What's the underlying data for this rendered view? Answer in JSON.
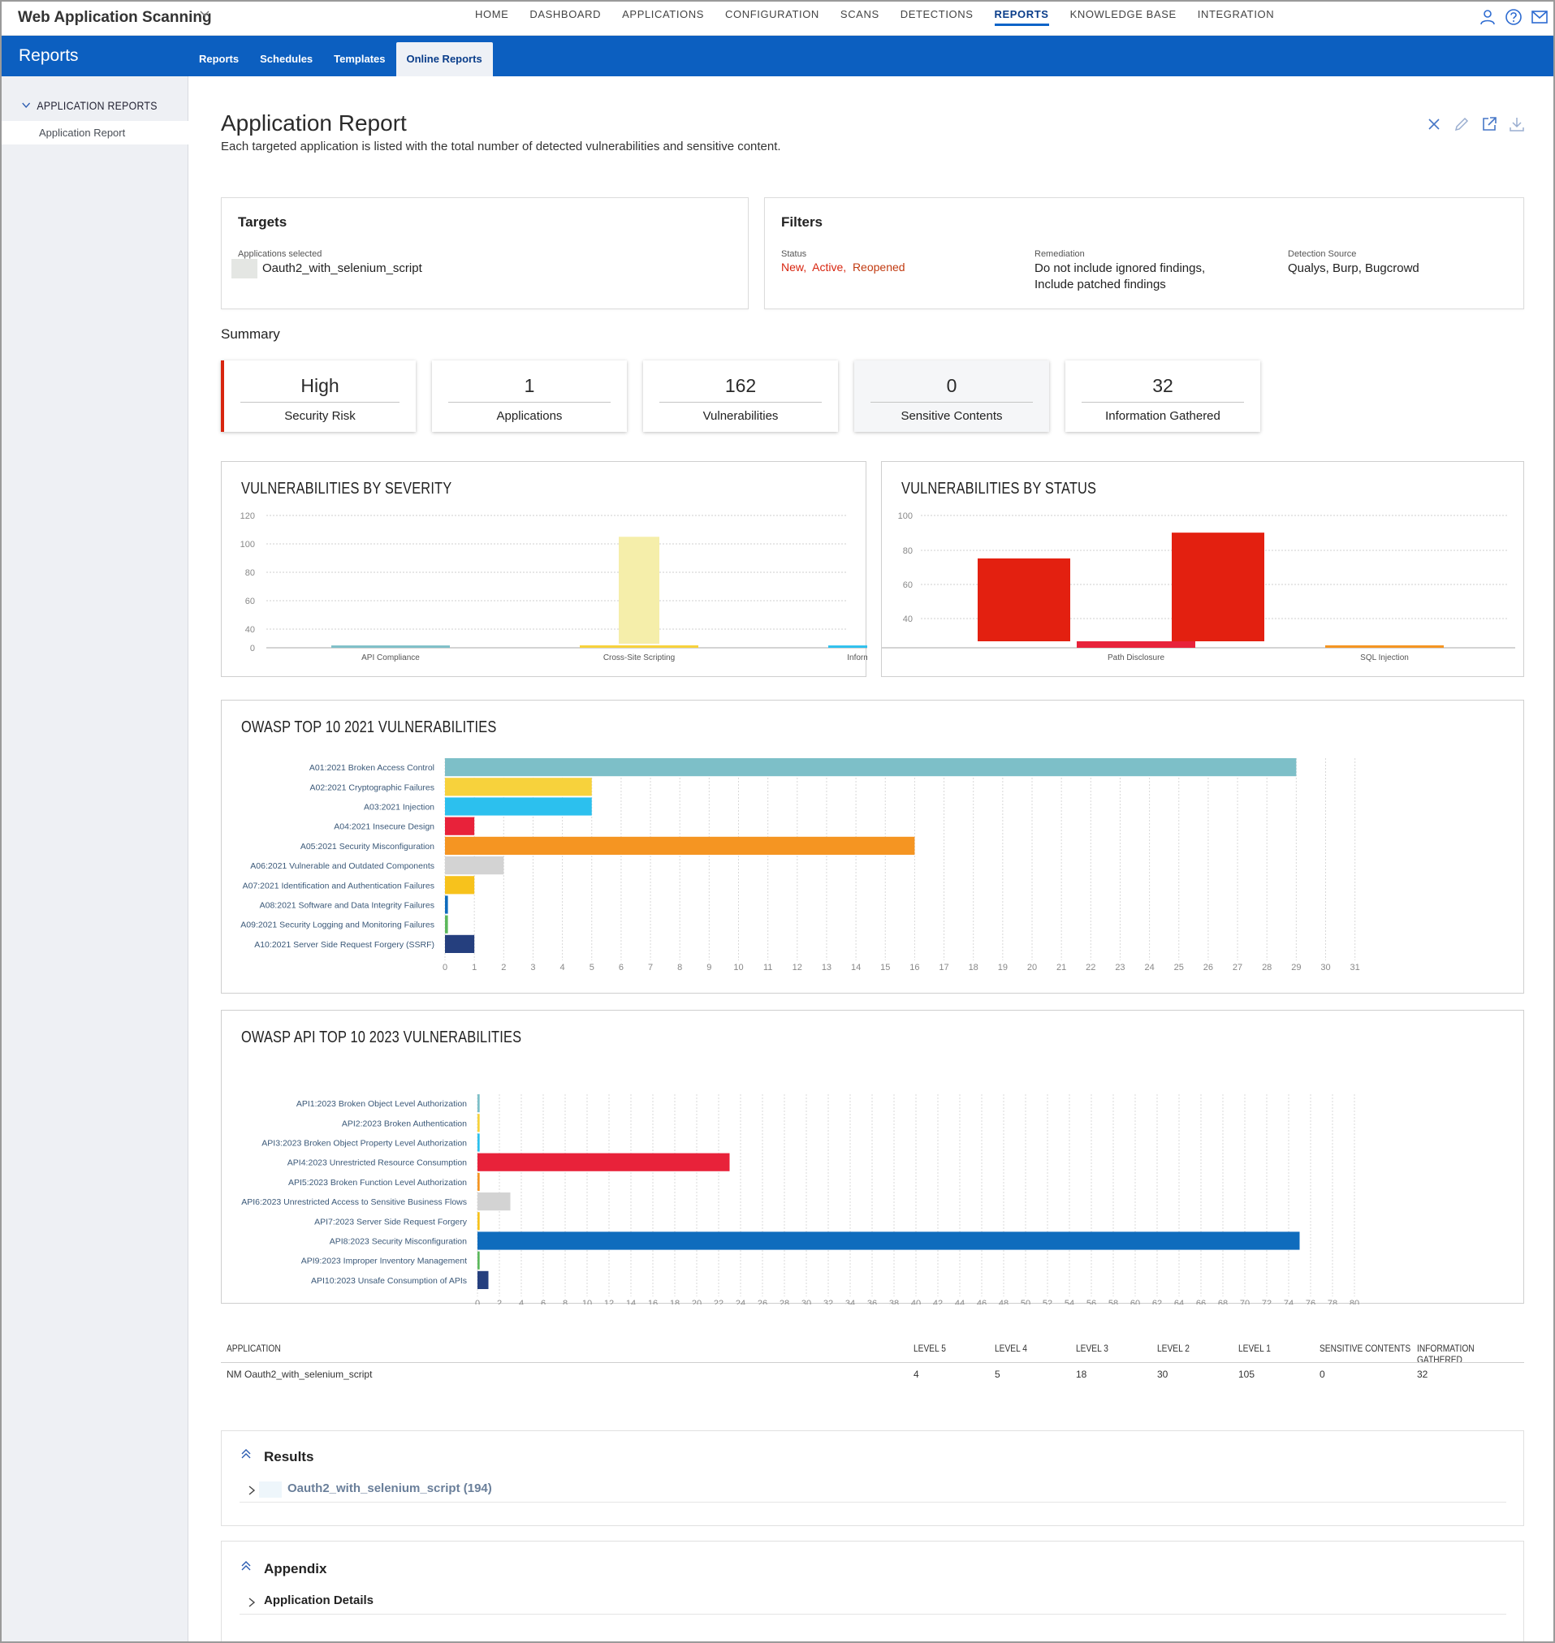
{
  "header": {
    "app_title": "Web Application Scanning",
    "nav": [
      "HOME",
      "DASHBOARD",
      "APPLICATIONS",
      "CONFIGURATION",
      "SCANS",
      "DETECTIONS",
      "REPORTS",
      "KNOWLEDGE BASE",
      "INTEGRATION"
    ],
    "active_nav": "REPORTS",
    "icons": [
      "user-icon",
      "help-icon",
      "mail-icon"
    ]
  },
  "subheader": {
    "section_title": "Reports",
    "tabs": [
      "Reports",
      "Schedules",
      "Templates",
      "Online Reports"
    ],
    "active_tab": "Online Reports"
  },
  "sidebar": {
    "heading": "APPLICATION REPORTS",
    "item": "Application Report"
  },
  "page": {
    "title": "Application Report",
    "description": "Each targeted application is listed with the total number of detected vulnerabilities and sensitive content.",
    "actions": [
      "close-icon",
      "edit-icon",
      "open-external-icon",
      "download-icon"
    ]
  },
  "targets": {
    "title": "Targets",
    "apps_label": "Applications selected",
    "app_name": "Oauth2_with_selenium_script"
  },
  "filters": {
    "title": "Filters",
    "status_label": "Status",
    "status_values": [
      "New,",
      "Active,",
      "Reopened"
    ],
    "remediation_label": "Remediation",
    "remediation_line1": "Do not include ignored findings,",
    "remediation_line2": "Include patched findings",
    "source_label": "Detection Source",
    "source_value": "Qualys, Burp, Bugcrowd"
  },
  "summary": {
    "label": "Summary",
    "cards": [
      {
        "value": "High",
        "label": "Security Risk"
      },
      {
        "value": "1",
        "label": "Applications"
      },
      {
        "value": "162",
        "label": "Vulnerabilities"
      },
      {
        "value": "0",
        "label": "Sensitive Contents"
      },
      {
        "value": "32",
        "label": "Information Gathered"
      }
    ],
    "accent_color": "#d8250f"
  },
  "charts_text": {
    "severity_title": "VULNERABILITIES BY SEVERITY",
    "status_title": "VULNERABILITIES BY STATUS",
    "owasp_title": "OWASP TOP 10 2021 VULNERABILITIES",
    "api_title": "OWASP API TOP 10 2023 VULNERABILITIES"
  },
  "chart_data": [
    {
      "type": "bar",
      "title": "VULNERABILITIES BY SEVERITY",
      "categories": [
        "API Compliance",
        "Cross-Site Scripting",
        "Information Disclosure"
      ],
      "values": [
        5,
        105,
        5
      ],
      "colors": [
        "#7dbfc8",
        "#f5eeaa",
        "#2cc0ee"
      ],
      "yticks": [
        0,
        40,
        60,
        80,
        100,
        120
      ]
    },
    {
      "type": "bar",
      "title": "VULNERABILITIES BY STATUS",
      "categories": [
        "Path Disclosure",
        "SQL Injection"
      ],
      "values": [
        90,
        35
      ],
      "colors": [
        "#e32010",
        "#e32010"
      ],
      "yticks": [
        40,
        60,
        80,
        100
      ]
    },
    {
      "type": "bar",
      "orientation": "horizontal",
      "title": "OWASP TOP 10 2021 VULNERABILITIES",
      "categories": [
        "A01:2021 Broken Access Control",
        "A02:2021 Cryptographic Failures",
        "A03:2021 Injection",
        "A04:2021 Insecure Design",
        "A05:2021 Security Misconfiguration",
        "A06:2021 Vulnerable and Outdated Components",
        "A07:2021 Identification and Authentication Failures",
        "A08:2021 Software and Data Integrity Failures",
        "A09:2021 Security Logging and Monitoring Failures",
        "A10:2021 Server Side Request Forgery (SSRF)"
      ],
      "values": [
        29,
        5,
        5,
        1,
        16,
        2,
        1,
        0.1,
        0.1,
        1
      ],
      "colors": [
        "#7dbfc8",
        "#f7d23c",
        "#2cc0ee",
        "#e8223a",
        "#f59522",
        "#d3d3d3",
        "#f7c21c",
        "#0f6cbd",
        "#5cb85c",
        "#253f7e"
      ],
      "xlim": [
        0,
        31
      ]
    },
    {
      "type": "bar",
      "orientation": "horizontal",
      "title": "OWASP API TOP 10 2023 VULNERABILITIES",
      "categories": [
        "API1:2023 Broken Object Level Authorization",
        "API2:2023 Broken Authentication",
        "API3:2023 Broken Object Property Level Authorization",
        "API4:2023 Unrestricted Resource Consumption",
        "API5:2023 Broken Function Level Authorization",
        "API6:2023 Unrestricted Access to Sensitive Business Flows",
        "API7:2023 Server Side Request Forgery",
        "API8:2023 Security Misconfiguration",
        "API9:2023 Improper Inventory Management",
        "API10:2023 Unsafe Consumption of APIs"
      ],
      "values": [
        0.2,
        0.2,
        0.2,
        23,
        0.2,
        3,
        0.2,
        75,
        0.2,
        1
      ],
      "colors": [
        "#7dbfc8",
        "#f7d23c",
        "#2cc0ee",
        "#e8223a",
        "#f59522",
        "#d3d3d3",
        "#f7c21c",
        "#0f6cbd",
        "#5cb85c",
        "#253f7e"
      ],
      "xlim": [
        0,
        80
      ]
    }
  ],
  "table": {
    "headers": [
      "APPLICATION",
      "LEVEL 5",
      "LEVEL 4",
      "LEVEL 3",
      "LEVEL 2",
      "LEVEL 1",
      "SENSITIVE CONTENTS",
      "INFORMATION GATHERED"
    ],
    "rows": [
      [
        "NM Oauth2_with_selenium_script",
        "4",
        "5",
        "18",
        "30",
        "105",
        "0",
        "32"
      ]
    ]
  },
  "results": {
    "title": "Results",
    "item": "Oauth2_with_selenium_script (194)"
  },
  "appendix": {
    "title": "Appendix",
    "item": "Application Details"
  }
}
